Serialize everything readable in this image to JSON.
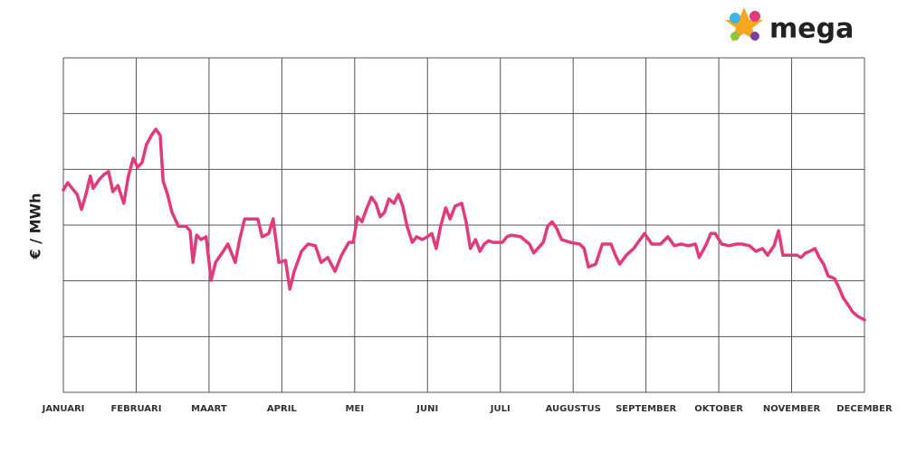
{
  "logo_text": "mega",
  "chart_data": {
    "type": "line",
    "y_label": "€ / MWh",
    "color": "#e23a7e",
    "grid": true,
    "xlim": [
      0,
      11
    ],
    "xticks": [
      {
        "value": 0,
        "label": "JANUARI"
      },
      {
        "value": 1,
        "label": "FEBRUARI"
      },
      {
        "value": 2,
        "label": "MAART"
      },
      {
        "value": 3,
        "label": "APRIL"
      },
      {
        "value": 4,
        "label": "MEI"
      },
      {
        "value": 5,
        "label": "JUNI"
      },
      {
        "value": 6,
        "label": "JULI"
      },
      {
        "value": 7,
        "label": "AUGUSTUS"
      },
      {
        "value": 8,
        "label": "SEPTEMBER"
      },
      {
        "value": 9,
        "label": "OKTOBER"
      },
      {
        "value": 10,
        "label": "NOVEMBER"
      },
      {
        "value": 11,
        "label": "DECEMBER"
      }
    ],
    "ylim": [
      0,
      6
    ],
    "yticks": [
      0,
      1,
      2,
      3,
      4,
      5,
      6
    ],
    "x": [
      0,
      0.06,
      0.12,
      0.19,
      0.25,
      0.31,
      0.37,
      0.41,
      0.5,
      0.56,
      0.62,
      0.68,
      0.75,
      0.83,
      0.89,
      0.96,
      1.02,
      1.08,
      1.14,
      1.21,
      1.27,
      1.33,
      1.37,
      1.43,
      1.49,
      1.58,
      1.68,
      1.74,
      1.78,
      1.83,
      1.89,
      1.96,
      2.03,
      2.09,
      2.18,
      2.26,
      2.36,
      2.42,
      2.49,
      2.59,
      2.67,
      2.73,
      2.82,
      2.88,
      2.96,
      3.05,
      3.11,
      3.17,
      3.27,
      3.36,
      3.46,
      3.54,
      3.63,
      3.73,
      3.82,
      3.92,
      3.98,
      4.04,
      4.1,
      4.16,
      4.23,
      4.29,
      4.35,
      4.41,
      4.47,
      4.54,
      4.6,
      4.66,
      4.72,
      4.79,
      4.85,
      4.93,
      5,
      5.06,
      5.12,
      5.18,
      5.25,
      5.31,
      5.38,
      5.47,
      5.53,
      5.59,
      5.66,
      5.72,
      5.78,
      5.84,
      5.9,
      6.03,
      6.09,
      6.15,
      6.28,
      6.4,
      6.46,
      6.59,
      6.65,
      6.71,
      6.77,
      6.84,
      6.96,
      7.09,
      7.15,
      7.21,
      7.31,
      7.4,
      7.52,
      7.58,
      7.64,
      7.73,
      7.83,
      7.92,
      7.98,
      8.08,
      8.2,
      8.3,
      8.39,
      8.48,
      8.58,
      8.68,
      8.73,
      8.83,
      8.89,
      8.95,
      9.04,
      9.14,
      9.24,
      9.32,
      9.42,
      9.51,
      9.6,
      9.67,
      9.76,
      9.82,
      9.88,
      9.94,
      10.07,
      10.13,
      10.19,
      10.25,
      10.32,
      10.38,
      10.44,
      10.5,
      10.59,
      10.66,
      10.71,
      10.78,
      10.84,
      10.91,
      11
    ],
    "values": [
      3.63,
      3.76,
      3.66,
      3.55,
      3.28,
      3.55,
      3.88,
      3.66,
      3.83,
      3.91,
      3.96,
      3.6,
      3.71,
      3.39,
      3.86,
      4.2,
      4.04,
      4.12,
      4.44,
      4.61,
      4.72,
      4.61,
      3.79,
      3.55,
      3.23,
      2.98,
      2.98,
      2.9,
      2.33,
      2.82,
      2.74,
      2.79,
      2.01,
      2.33,
      2.5,
      2.66,
      2.33,
      2.74,
      3.11,
      3.11,
      3.11,
      2.79,
      2.85,
      3.11,
      2.33,
      2.37,
      1.85,
      2.17,
      2.53,
      2.66,
      2.63,
      2.33,
      2.42,
      2.17,
      2.46,
      2.69,
      2.69,
      3.15,
      3.06,
      3.28,
      3.5,
      3.39,
      3.15,
      3.23,
      3.47,
      3.39,
      3.55,
      3.34,
      2.98,
      2.69,
      2.79,
      2.74,
      2.79,
      2.85,
      2.58,
      2.98,
      3.31,
      3.11,
      3.34,
      3.39,
      3.06,
      2.58,
      2.74,
      2.53,
      2.66,
      2.72,
      2.69,
      2.69,
      2.79,
      2.82,
      2.79,
      2.66,
      2.5,
      2.69,
      2.98,
      3.06,
      2.95,
      2.74,
      2.69,
      2.66,
      2.58,
      2.25,
      2.3,
      2.66,
      2.66,
      2.46,
      2.3,
      2.46,
      2.58,
      2.74,
      2.85,
      2.66,
      2.66,
      2.79,
      2.63,
      2.66,
      2.63,
      2.66,
      2.42,
      2.66,
      2.85,
      2.85,
      2.66,
      2.63,
      2.66,
      2.66,
      2.63,
      2.53,
      2.58,
      2.46,
      2.63,
      2.9,
      2.46,
      2.46,
      2.46,
      2.42,
      2.5,
      2.53,
      2.58,
      2.42,
      2.3,
      2.09,
      2.04,
      1.85,
      1.69,
      1.56,
      1.44,
      1.36,
      1.3
    ]
  }
}
